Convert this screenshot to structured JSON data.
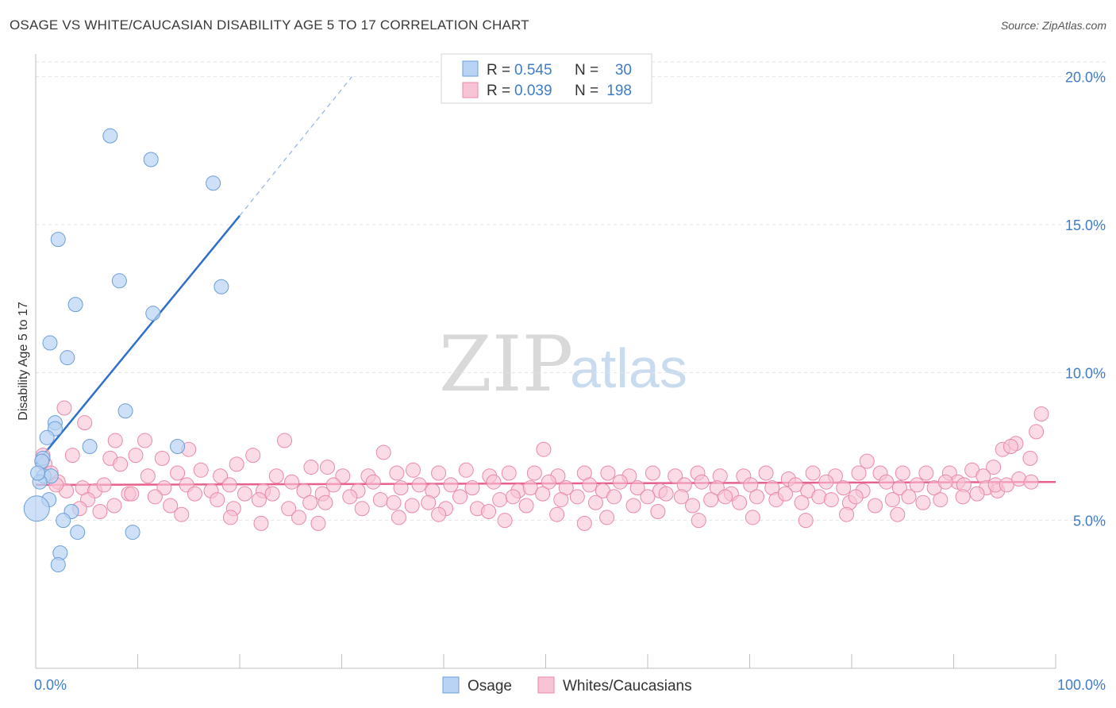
{
  "header": {
    "title": "OSAGE VS WHITE/CAUCASIAN DISABILITY AGE 5 TO 17 CORRELATION CHART",
    "source": "Source: ZipAtlas.com"
  },
  "legend_top": {
    "rows": [
      {
        "r_label": "R =",
        "r_value": "0.545",
        "n_label": "N =",
        "n_value": "30",
        "color": "#b8d3f3"
      },
      {
        "r_label": "R =",
        "r_value": "0.039",
        "n_label": "N =",
        "n_value": "198",
        "color": "#f8c3d4"
      }
    ]
  },
  "legend_bottom": {
    "items": [
      {
        "label": "Osage",
        "color": "#b8d3f3"
      },
      {
        "label": "Whites/Caucasians",
        "color": "#f8c3d4"
      }
    ]
  },
  "watermark": {
    "zip": "ZIP",
    "atlas": "atlas"
  },
  "colors": {
    "osage_fill": "#b8d3f3",
    "osage_stroke": "#6a9ed8",
    "osage_line": "#2f6fc9",
    "white_fill": "#f8c3d4",
    "white_stroke": "#e88aa8",
    "white_line": "#e8618c",
    "tick": "#3e7cc9",
    "grid": "#e3e3e3"
  },
  "chart_data": {
    "type": "scatter",
    "title": "OSAGE VS WHITE/CAUCASIAN DISABILITY AGE 5 TO 17 CORRELATION CHART",
    "xlabel": "",
    "ylabel": "Disability Age 5 to 17",
    "xlim": [
      0,
      100
    ],
    "ylim": [
      0,
      20.5
    ],
    "x_tick_labels": [
      "0.0%",
      "100.0%"
    ],
    "y_ticks": [
      5,
      10,
      15,
      20
    ],
    "y_tick_labels": [
      "5.0%",
      "10.0%",
      "15.0%",
      "20.0%"
    ],
    "grid": true,
    "legend_position": "top-center",
    "series": [
      {
        "name": "Osage",
        "r": 0.545,
        "n": 30,
        "trend": {
          "x0": 0,
          "y0": 6.9,
          "x1": 20,
          "y1": 15.3,
          "dashed_to_x": 31,
          "dashed_to_y": 20.0
        },
        "points": [
          [
            7.3,
            18.0
          ],
          [
            11.3,
            17.2
          ],
          [
            17.4,
            16.4
          ],
          [
            2.2,
            14.5
          ],
          [
            8.2,
            13.1
          ],
          [
            18.2,
            12.9
          ],
          [
            3.9,
            12.3
          ],
          [
            11.5,
            12.0
          ],
          [
            1.4,
            11.0
          ],
          [
            3.1,
            10.5
          ],
          [
            8.8,
            8.7
          ],
          [
            1.9,
            8.3
          ],
          [
            1.9,
            8.1
          ],
          [
            1.1,
            7.8
          ],
          [
            5.3,
            7.5
          ],
          [
            13.9,
            7.5
          ],
          [
            0.7,
            7.1
          ],
          [
            0.6,
            7.0
          ],
          [
            0.8,
            6.5
          ],
          [
            1.5,
            6.5
          ],
          [
            0.4,
            6.3
          ],
          [
            1.3,
            5.7
          ],
          [
            3.5,
            5.3
          ],
          [
            2.7,
            5.0
          ],
          [
            4.1,
            4.6
          ],
          [
            9.5,
            4.6
          ],
          [
            2.4,
            3.9
          ],
          [
            2.2,
            3.5
          ],
          [
            0.1,
            5.4
          ],
          [
            0.2,
            6.6
          ]
        ]
      },
      {
        "name": "Whites/Caucasians",
        "r": 0.039,
        "n": 198,
        "trend": {
          "x0": 0,
          "y0": 6.2,
          "x1": 100,
          "y1": 6.3
        },
        "points": [
          [
            2.8,
            8.8
          ],
          [
            4.8,
            8.3
          ],
          [
            7.8,
            7.7
          ],
          [
            10.7,
            7.7
          ],
          [
            15.0,
            7.4
          ],
          [
            3.6,
            7.2
          ],
          [
            7.3,
            7.1
          ],
          [
            9.8,
            7.2
          ],
          [
            12.4,
            7.1
          ],
          [
            24.4,
            7.7
          ],
          [
            21.3,
            7.2
          ],
          [
            34.1,
            7.3
          ],
          [
            49.8,
            7.4
          ],
          [
            81.5,
            7.0
          ],
          [
            98.6,
            8.6
          ],
          [
            98.1,
            8.0
          ],
          [
            96.1,
            7.6
          ],
          [
            94.8,
            7.4
          ],
          [
            95.6,
            7.5
          ],
          [
            97.5,
            7.1
          ],
          [
            0.7,
            7.2
          ],
          [
            0.9,
            6.9
          ],
          [
            1.5,
            6.6
          ],
          [
            2.2,
            6.3
          ],
          [
            8.3,
            6.9
          ],
          [
            11.0,
            6.5
          ],
          [
            13.9,
            6.6
          ],
          [
            16.2,
            6.7
          ],
          [
            18.1,
            6.5
          ],
          [
            19.7,
            6.9
          ],
          [
            23.6,
            6.5
          ],
          [
            27.0,
            6.8
          ],
          [
            28.6,
            6.8
          ],
          [
            30.1,
            6.5
          ],
          [
            32.6,
            6.5
          ],
          [
            35.4,
            6.6
          ],
          [
            37.0,
            6.7
          ],
          [
            39.5,
            6.6
          ],
          [
            42.2,
            6.7
          ],
          [
            44.5,
            6.5
          ],
          [
            46.4,
            6.6
          ],
          [
            48.9,
            6.6
          ],
          [
            51.2,
            6.5
          ],
          [
            53.8,
            6.6
          ],
          [
            56.1,
            6.6
          ],
          [
            58.2,
            6.5
          ],
          [
            60.5,
            6.6
          ],
          [
            62.7,
            6.5
          ],
          [
            64.9,
            6.6
          ],
          [
            67.1,
            6.5
          ],
          [
            69.4,
            6.5
          ],
          [
            71.6,
            6.6
          ],
          [
            73.8,
            6.4
          ],
          [
            76.2,
            6.6
          ],
          [
            78.4,
            6.5
          ],
          [
            80.7,
            6.6
          ],
          [
            82.8,
            6.6
          ],
          [
            85.0,
            6.6
          ],
          [
            87.3,
            6.6
          ],
          [
            89.6,
            6.6
          ],
          [
            91.8,
            6.7
          ],
          [
            93.9,
            6.8
          ],
          [
            92.9,
            6.5
          ],
          [
            90.4,
            6.3
          ],
          [
            3.0,
            6.0
          ],
          [
            4.6,
            6.1
          ],
          [
            5.8,
            6.0
          ],
          [
            6.7,
            6.2
          ],
          [
            9.1,
            5.9
          ],
          [
            12.6,
            6.1
          ],
          [
            14.8,
            6.2
          ],
          [
            17.2,
            6.0
          ],
          [
            19.0,
            6.2
          ],
          [
            20.5,
            5.9
          ],
          [
            22.3,
            6.0
          ],
          [
            25.1,
            6.3
          ],
          [
            26.3,
            6.0
          ],
          [
            28.1,
            5.9
          ],
          [
            29.2,
            6.2
          ],
          [
            31.6,
            6.0
          ],
          [
            33.1,
            6.3
          ],
          [
            35.8,
            6.1
          ],
          [
            37.6,
            6.2
          ],
          [
            38.9,
            6.0
          ],
          [
            40.7,
            6.2
          ],
          [
            42.8,
            6.1
          ],
          [
            44.9,
            6.3
          ],
          [
            47.3,
            6.0
          ],
          [
            48.5,
            6.1
          ],
          [
            50.3,
            6.3
          ],
          [
            52.0,
            6.1
          ],
          [
            54.3,
            6.2
          ],
          [
            55.6,
            6.0
          ],
          [
            57.3,
            6.3
          ],
          [
            59.0,
            6.1
          ],
          [
            61.2,
            6.0
          ],
          [
            63.6,
            6.2
          ],
          [
            65.3,
            6.3
          ],
          [
            66.8,
            6.1
          ],
          [
            68.2,
            5.9
          ],
          [
            70.1,
            6.2
          ],
          [
            72.2,
            6.1
          ],
          [
            74.5,
            6.2
          ],
          [
            75.7,
            6.0
          ],
          [
            77.5,
            6.3
          ],
          [
            79.2,
            6.1
          ],
          [
            81.1,
            6.0
          ],
          [
            83.4,
            6.3
          ],
          [
            84.7,
            6.1
          ],
          [
            86.4,
            6.2
          ],
          [
            88.1,
            6.1
          ],
          [
            89.2,
            6.3
          ],
          [
            91.0,
            6.2
          ],
          [
            93.2,
            6.1
          ],
          [
            94.3,
            6.0
          ],
          [
            2.0,
            6.2
          ],
          [
            5.1,
            5.7
          ],
          [
            7.7,
            5.5
          ],
          [
            9.4,
            5.9
          ],
          [
            11.7,
            5.8
          ],
          [
            13.2,
            5.5
          ],
          [
            15.6,
            5.9
          ],
          [
            17.8,
            5.7
          ],
          [
            19.4,
            5.4
          ],
          [
            21.9,
            5.7
          ],
          [
            23.2,
            5.9
          ],
          [
            24.8,
            5.4
          ],
          [
            26.9,
            5.6
          ],
          [
            28.4,
            5.6
          ],
          [
            30.8,
            5.8
          ],
          [
            32.0,
            5.4
          ],
          [
            33.8,
            5.7
          ],
          [
            35.1,
            5.6
          ],
          [
            36.9,
            5.5
          ],
          [
            38.5,
            5.6
          ],
          [
            40.2,
            5.4
          ],
          [
            41.6,
            5.8
          ],
          [
            43.3,
            5.4
          ],
          [
            45.5,
            5.7
          ],
          [
            46.8,
            5.8
          ],
          [
            48.1,
            5.5
          ],
          [
            49.7,
            5.9
          ],
          [
            51.5,
            5.7
          ],
          [
            53.1,
            5.8
          ],
          [
            54.9,
            5.6
          ],
          [
            56.7,
            5.8
          ],
          [
            58.6,
            5.5
          ],
          [
            60.0,
            5.8
          ],
          [
            61.8,
            5.9
          ],
          [
            63.3,
            5.8
          ],
          [
            64.4,
            5.5
          ],
          [
            66.2,
            5.7
          ],
          [
            67.6,
            5.8
          ],
          [
            69.0,
            5.6
          ],
          [
            70.7,
            5.8
          ],
          [
            72.6,
            5.7
          ],
          [
            73.5,
            5.9
          ],
          [
            75.1,
            5.6
          ],
          [
            76.8,
            5.8
          ],
          [
            78.0,
            5.7
          ],
          [
            79.8,
            5.6
          ],
          [
            80.4,
            5.8
          ],
          [
            82.3,
            5.5
          ],
          [
            84.0,
            5.7
          ],
          [
            85.6,
            5.8
          ],
          [
            87.0,
            5.6
          ],
          [
            88.7,
            5.7
          ],
          [
            90.9,
            5.8
          ],
          [
            92.3,
            5.9
          ],
          [
            94.1,
            6.2
          ],
          [
            4.3,
            5.4
          ],
          [
            6.3,
            5.3
          ],
          [
            14.3,
            5.2
          ],
          [
            19.1,
            5.1
          ],
          [
            22.1,
            4.9
          ],
          [
            25.8,
            5.1
          ],
          [
            27.7,
            4.9
          ],
          [
            35.6,
            5.1
          ],
          [
            39.5,
            5.2
          ],
          [
            44.4,
            5.3
          ],
          [
            46.0,
            5.0
          ],
          [
            51.1,
            5.2
          ],
          [
            53.8,
            4.9
          ],
          [
            56.0,
            5.1
          ],
          [
            61.0,
            5.3
          ],
          [
            65.0,
            5.0
          ],
          [
            70.3,
            5.1
          ],
          [
            75.5,
            5.0
          ],
          [
            79.5,
            5.2
          ],
          [
            84.5,
            5.2
          ],
          [
            95.2,
            6.2
          ],
          [
            96.4,
            6.4
          ],
          [
            97.6,
            6.3
          ]
        ]
      }
    ]
  }
}
